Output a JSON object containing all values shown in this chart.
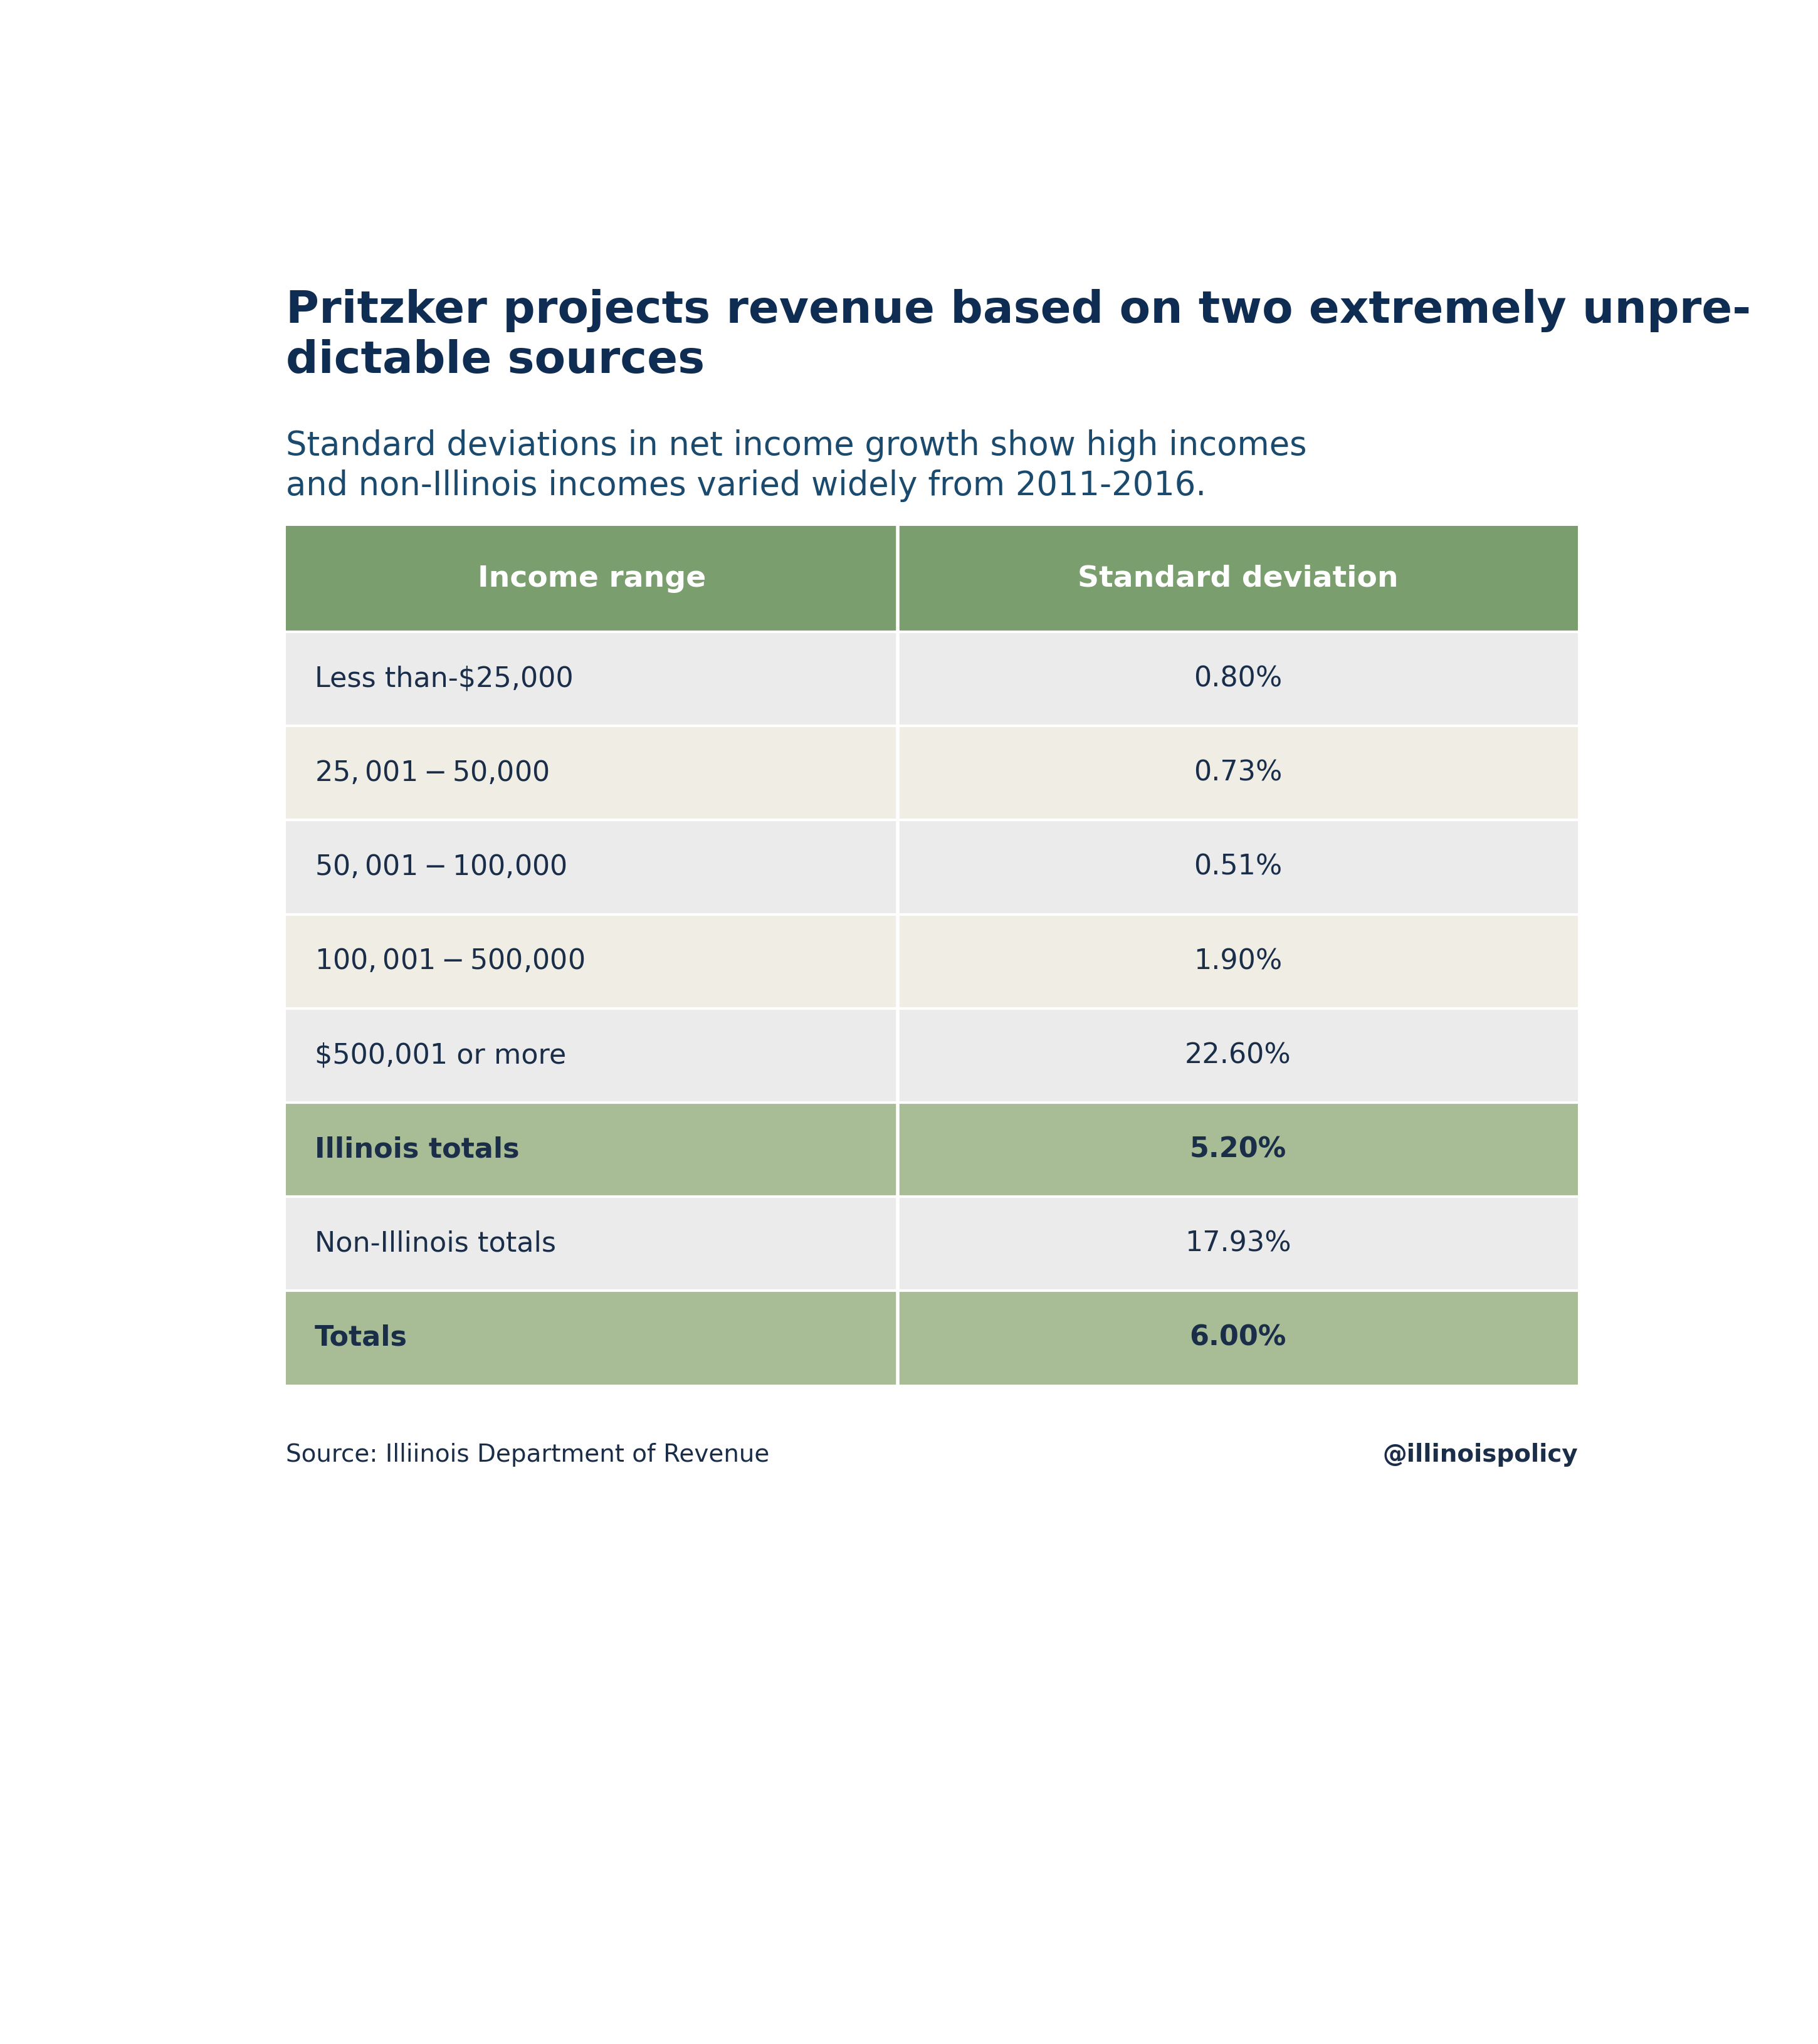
{
  "title": "Pritzker projects revenue based on two extremely unpre-\ndictable sources",
  "subtitle": "Standard deviations in net income growth show high incomes\nand non-Illinois incomes varied widely from 2011-2016.",
  "col_headers": [
    "Income range",
    "Standard deviation"
  ],
  "rows": [
    {
      "label": "Less than-$25,000",
      "value": "0.80%",
      "bold": false,
      "highlight": false,
      "light_bg": true
    },
    {
      "label": "$25,001-$50,000",
      "value": "0.73%",
      "bold": false,
      "highlight": false,
      "light_bg": false
    },
    {
      "label": "$50,001-$100,000",
      "value": "0.51%",
      "bold": false,
      "highlight": false,
      "light_bg": true
    },
    {
      "label": "$100,001-$500,000",
      "value": "1.90%",
      "bold": false,
      "highlight": false,
      "light_bg": false
    },
    {
      "label": "$500,001 or more",
      "value": "22.60%",
      "bold": false,
      "highlight": false,
      "light_bg": true
    },
    {
      "label": "Illinois totals",
      "value": "5.20%",
      "bold": true,
      "highlight": true,
      "light_bg": false
    },
    {
      "label": "Non-Illinois totals",
      "value": "17.93%",
      "bold": false,
      "highlight": false,
      "light_bg": true
    },
    {
      "label": "Totals",
      "value": "6.00%",
      "bold": true,
      "highlight": true,
      "light_bg": false
    }
  ],
  "header_bg": "#7a9e6e",
  "highlight_bg": "#a8bc96",
  "light_row_bg": "#ebebeb",
  "white_row_bg": "#f0ede4",
  "header_text_color": "#ffffff",
  "normal_text_color": "#1a2e4a",
  "title_color": "#0f2d52",
  "subtitle_color": "#1a4a6e",
  "source_text": "Source: Illiinois Department of Revenue",
  "handle_text": "@illinoispolicy",
  "bg_color": "#ffffff",
  "title_fontsize": 52,
  "subtitle_fontsize": 38,
  "header_fontsize": 34,
  "row_fontsize": 32,
  "footer_fontsize": 28
}
